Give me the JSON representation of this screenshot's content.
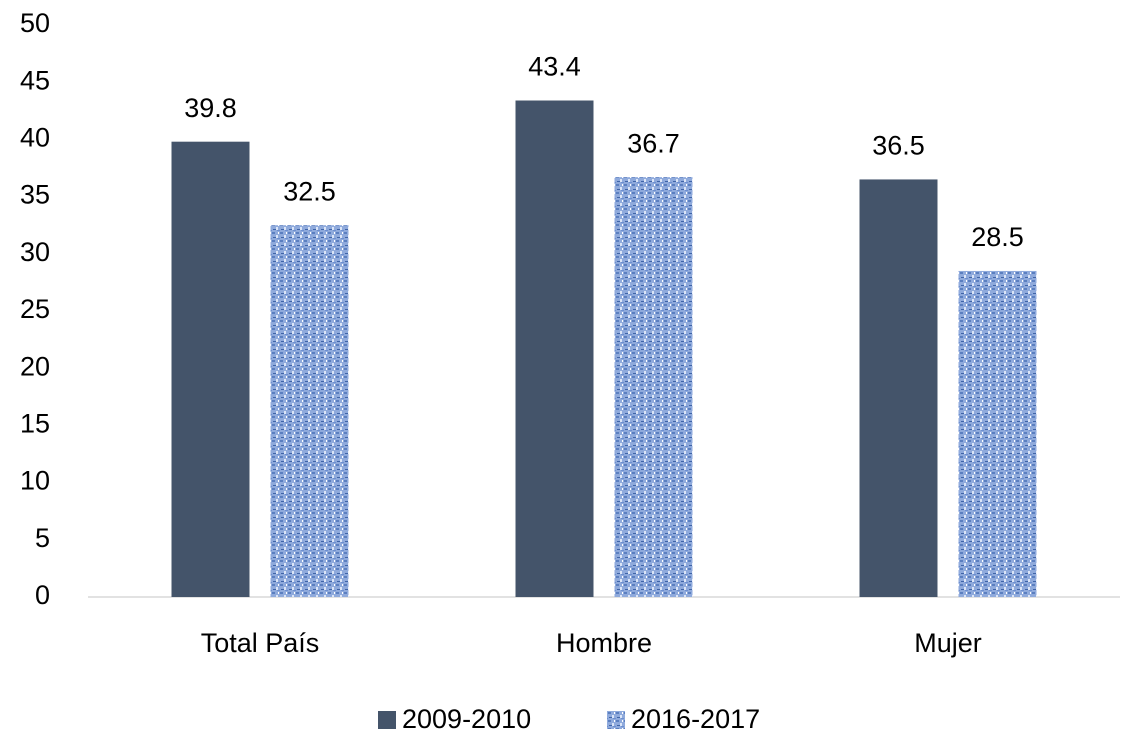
{
  "chart_data": {
    "type": "bar",
    "categories": [
      "Total País",
      "Hombre",
      "Mujer"
    ],
    "series": [
      {
        "name": "2009-2010",
        "color": "#44546a",
        "values": [
          39.8,
          43.4,
          36.5
        ]
      },
      {
        "name": "2016-2017",
        "color": "#8faadc",
        "values": [
          32.5,
          36.7,
          28.5
        ]
      }
    ],
    "ylim": [
      0,
      50
    ],
    "yticks": [
      0,
      5,
      10,
      15,
      20,
      25,
      30,
      35,
      40,
      45,
      50
    ],
    "grid": false,
    "legend": "bottom"
  }
}
